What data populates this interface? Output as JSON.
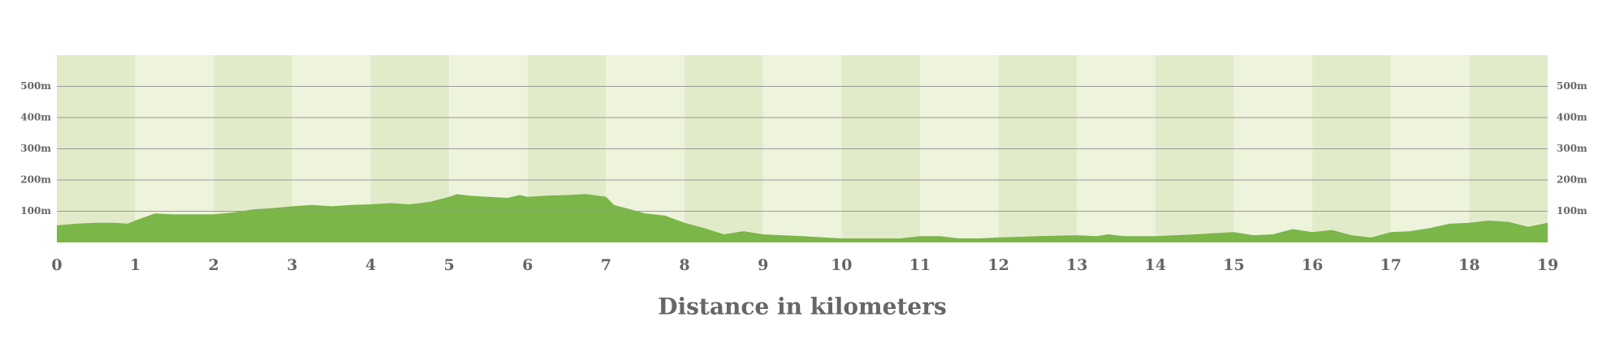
{
  "chart_data": {
    "type": "area",
    "x_label": "Distance in kilometers",
    "x": [
      0,
      0.25,
      0.5,
      0.75,
      0.9,
      1,
      1.25,
      1.5,
      1.75,
      2,
      2.25,
      2.5,
      2.75,
      3,
      3.25,
      3.5,
      3.75,
      4,
      4.25,
      4.5,
      4.75,
      5,
      5.1,
      5.25,
      5.5,
      5.75,
      5.9,
      6,
      6.25,
      6.5,
      6.75,
      7,
      7.1,
      7.25,
      7.5,
      7.75,
      8,
      8.25,
      8.5,
      8.75,
      9,
      9.5,
      10,
      10.5,
      10.75,
      11,
      11.25,
      11.5,
      11.75,
      12,
      12.5,
      13,
      13.25,
      13.4,
      13.6,
      14,
      14.25,
      14.5,
      15,
      15.25,
      15.5,
      15.75,
      16,
      16.25,
      16.5,
      16.75,
      17,
      17.25,
      17.5,
      17.75,
      18,
      18.25,
      18.5,
      18.75,
      19
    ],
    "series": [
      {
        "color": "#7ab648",
        "values": [
          55,
          60,
          63,
          63,
          60,
          70,
          93,
          90,
          90,
          90,
          96,
          106,
          110,
          116,
          120,
          116,
          120,
          122,
          126,
          122,
          130,
          146,
          155,
          150,
          146,
          143,
          152,
          146,
          150,
          152,
          155,
          146,
          120,
          110,
          93,
          86,
          63,
          46,
          26,
          36,
          26,
          20,
          13,
          13,
          13,
          20,
          20,
          13,
          13,
          16,
          20,
          23,
          20,
          26,
          20,
          20,
          23,
          26,
          33,
          23,
          26,
          43,
          33,
          40,
          23,
          16,
          33,
          36,
          46,
          60,
          63,
          70,
          66,
          50,
          63
        ]
      }
    ],
    "xlim": [
      0,
      19
    ],
    "xticks": [
      0,
      1,
      2,
      3,
      4,
      5,
      6,
      7,
      8,
      9,
      10,
      11,
      12,
      13,
      14,
      15,
      16,
      17,
      18,
      19
    ],
    "ylim": [
      0,
      600
    ],
    "yticks": [
      {
        "value": 100,
        "label": "100m"
      },
      {
        "value": 200,
        "label": "200m"
      },
      {
        "value": 300,
        "label": "300m"
      },
      {
        "value": 400,
        "label": "400m"
      },
      {
        "value": 500,
        "label": "500m"
      }
    ],
    "grid": true
  }
}
